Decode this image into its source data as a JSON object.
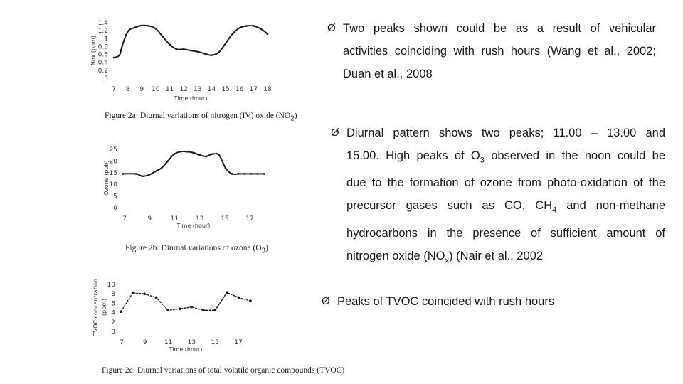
{
  "chart_data": [
    {
      "type": "line",
      "ylabel": "Nox (ppm)",
      "xlabel": "Time (hour)",
      "yticks": [
        "1.4",
        "1.2",
        "1",
        "0.8",
        "0.6",
        "0.4",
        "0.2",
        "0"
      ],
      "ylim": [
        0,
        1.4
      ],
      "xticks": [
        "7",
        "8",
        "9",
        "10",
        "11",
        "12",
        "13",
        "14",
        "15",
        "16",
        "17",
        "18"
      ],
      "xlim": [
        7,
        18
      ],
      "markers": false,
      "x": [
        7,
        7.4,
        7.6,
        8,
        8.5,
        9,
        9.5,
        10,
        10.5,
        11,
        11.5,
        12,
        12.5,
        13,
        13.5,
        14,
        14.5,
        15,
        15.5,
        16,
        16.5,
        17,
        17.5,
        18
      ],
      "y": [
        0.52,
        0.58,
        0.82,
        1.18,
        1.28,
        1.33,
        1.32,
        1.25,
        1.05,
        0.85,
        0.73,
        0.73,
        0.7,
        0.67,
        0.62,
        0.58,
        0.65,
        0.88,
        1.12,
        1.27,
        1.32,
        1.32,
        1.25,
        1.12
      ],
      "caption": "Figure 2a: Diurnal variations of nitrogen (IV) oxide (NO2)"
    },
    {
      "type": "line",
      "ylabel": "Ozone (ppb)",
      "xlabel": "Time (hour)",
      "yticks": [
        "25",
        "20",
        "15",
        "10",
        "5",
        "0"
      ],
      "ylim": [
        0,
        25
      ],
      "xticks": [
        "7",
        "9",
        "11",
        "13",
        "15",
        "17"
      ],
      "xlim": [
        7,
        18
      ],
      "markers": false,
      "x": [
        7,
        8,
        8.5,
        9,
        9.5,
        10,
        10.5,
        11,
        11.5,
        12,
        12.5,
        13,
        13.5,
        14,
        14.5,
        15,
        15.5,
        16,
        16.5,
        17,
        17.5,
        18
      ],
      "y": [
        14.5,
        14.5,
        13.5,
        14,
        15.5,
        17,
        20,
        23,
        24,
        24,
        23.5,
        22.5,
        22,
        23,
        22.5,
        17,
        14.5,
        14.5,
        14.5,
        14.5,
        14.5,
        14.5
      ],
      "caption": "Figure 2b: Diurnal variations of ozone (O3)"
    },
    {
      "type": "line",
      "ylabel": "TVOC concentration (ppm)",
      "xlabel": "Time (hour)",
      "yticks": [
        "10",
        "8",
        "6",
        "4",
        "2",
        "0"
      ],
      "ylim": [
        0,
        10
      ],
      "xticks": [
        "7",
        "9",
        "11",
        "13",
        "15",
        "17"
      ],
      "xlim": [
        7,
        18
      ],
      "markers": true,
      "x": [
        7,
        8,
        9,
        10,
        11,
        12,
        13,
        14,
        15,
        16,
        17,
        18
      ],
      "y": [
        4.2,
        8.2,
        8,
        7.2,
        4.5,
        4.8,
        5.2,
        4.5,
        4.5,
        8.3,
        7.2,
        6.5
      ],
      "caption": "Figure 2c: Diurnal variations of total volatile organic compounds (TVOC)"
    }
  ],
  "captions": {
    "fig_a": [
      "Figure 2a: Diurnal variations of nitrogen (IV) oxide (NO",
      "2",
      ")"
    ],
    "fig_b": [
      "Figure 2b: Diurnal variations of ozone (O",
      "3",
      ")"
    ],
    "fig_c": "Figure 2c: Diurnal variations of total volatile organic compounds (TVOC)"
  },
  "bullets": {
    "marker": "Ø",
    "b1": {
      "l1": "Two peaks shown could be as a result of vehicular",
      "l2": "activities coinciding with rush hours (Wang et al., 2002;",
      "l3": "Duan et al., 2008"
    },
    "b2": {
      "l1": "Diurnal pattern shows two peaks; 11.00 – 13.00 and",
      "l2": [
        "15.00. High peaks of O",
        "3",
        " observed in the noon could be"
      ],
      "l3": "due to the formation of ozone from photo-oxidation of the",
      "l4": [
        "precursor gases such as CO, CH",
        "4",
        " and non-methane"
      ],
      "l5": "hydrocarbons in the presence of sufficient amount of",
      "l6": [
        "nitrogen oxide (NO",
        "x",
        ") (Nair et al., 2002"
      ]
    },
    "b3": {
      "l1": "Peaks of TVOC coincided with rush hours"
    }
  }
}
